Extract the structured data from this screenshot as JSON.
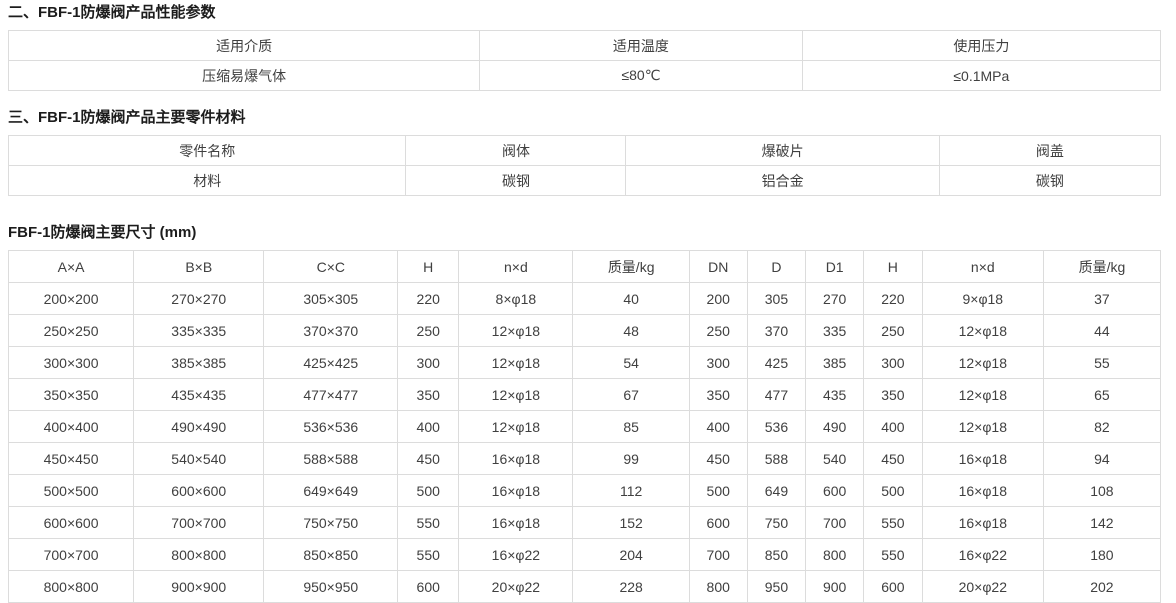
{
  "colors": {
    "border": "#dcdcdc",
    "body_text": "#404040",
    "title_text": "#1c1c1c",
    "background": "#ffffff"
  },
  "tables": {
    "performance": {
      "title": "二、FBF-1防爆阀产品性能参数",
      "rows": [
        [
          "适用介质",
          "适用温度",
          "使用压力"
        ],
        [
          "压缩易爆气体",
          "≤80℃",
          "≤0.1MPa"
        ]
      ]
    },
    "materials": {
      "title": "三、FBF-1防爆阀产品主要零件材料",
      "rows": [
        [
          "零件名称",
          "阀体",
          "爆破片",
          "阀盖"
        ],
        [
          "材料",
          "碳钢",
          "铝合金",
          "碳钢"
        ]
      ]
    },
    "dimensions": {
      "title": "FBF-1防爆阀主要尺寸 (mm)",
      "headers": [
        "A×A",
        "B×B",
        "C×C",
        "H",
        "n×d",
        "质量/kg",
        "DN",
        "D",
        "D1",
        "H",
        "n×d",
        "质量/kg"
      ],
      "rows": [
        [
          "200×200",
          "270×270",
          "305×305",
          "220",
          "8×φ18",
          "40",
          "200",
          "305",
          "270",
          "220",
          "9×φ18",
          "37"
        ],
        [
          "250×250",
          "335×335",
          "370×370",
          "250",
          "12×φ18",
          "48",
          "250",
          "370",
          "335",
          "250",
          "12×φ18",
          "44"
        ],
        [
          "300×300",
          "385×385",
          "425×425",
          "300",
          "12×φ18",
          "54",
          "300",
          "425",
          "385",
          "300",
          "12×φ18",
          "55"
        ],
        [
          "350×350",
          "435×435",
          "477×477",
          "350",
          "12×φ18",
          "67",
          "350",
          "477",
          "435",
          "350",
          "12×φ18",
          "65"
        ],
        [
          "400×400",
          "490×490",
          "536×536",
          "400",
          "12×φ18",
          "85",
          "400",
          "536",
          "490",
          "400",
          "12×φ18",
          "82"
        ],
        [
          "450×450",
          "540×540",
          "588×588",
          "450",
          "16×φ18",
          "99",
          "450",
          "588",
          "540",
          "450",
          "16×φ18",
          "94"
        ],
        [
          "500×500",
          "600×600",
          "649×649",
          "500",
          "16×φ18",
          "112",
          "500",
          "649",
          "600",
          "500",
          "16×φ18",
          "108"
        ],
        [
          "600×600",
          "700×700",
          "750×750",
          "550",
          "16×φ18",
          "152",
          "600",
          "750",
          "700",
          "550",
          "16×φ18",
          "142"
        ],
        [
          "700×700",
          "800×800",
          "850×850",
          "550",
          "16×φ22",
          "204",
          "700",
          "850",
          "800",
          "550",
          "16×φ22",
          "180"
        ],
        [
          "800×800",
          "900×900",
          "950×950",
          "600",
          "20×φ22",
          "228",
          "800",
          "950",
          "900",
          "600",
          "20×φ22",
          "202"
        ]
      ]
    }
  }
}
